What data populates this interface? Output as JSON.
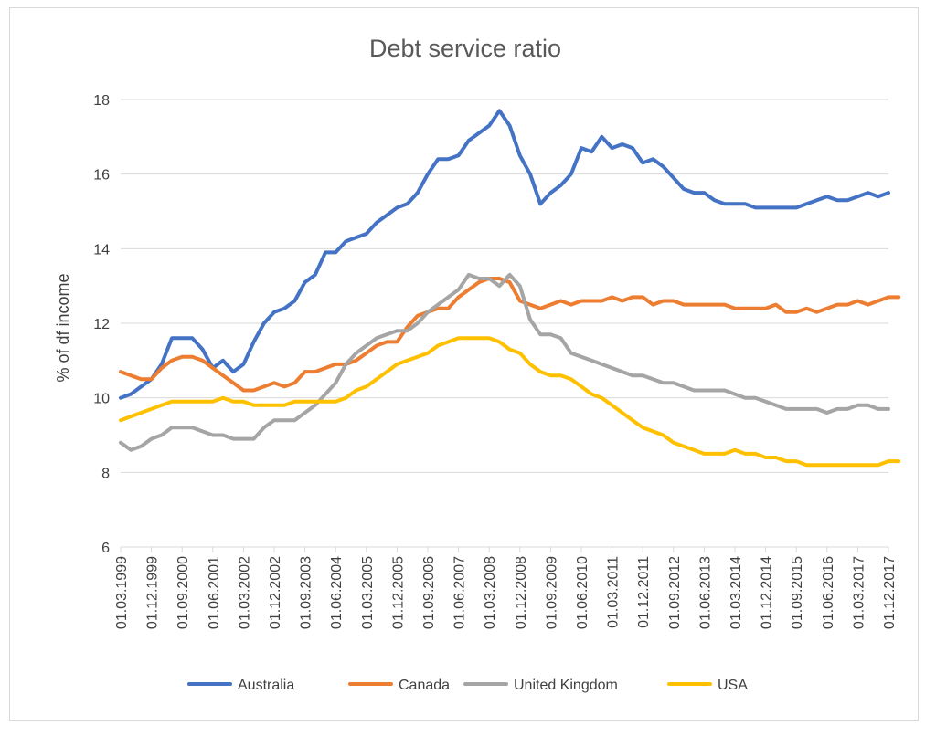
{
  "chart_data": {
    "type": "line",
    "title": "Debt service ratio",
    "ylabel": "% of df income",
    "xlabel": "",
    "ylim": [
      6,
      18
    ],
    "yticks": [
      "18",
      "16",
      "14",
      "12",
      "10",
      "8",
      "6"
    ],
    "x_tick_labels": [
      "01.03.1999",
      "01.12.1999",
      "01.09.2000",
      "01.06.2001",
      "01.03.2002",
      "01.12.2002",
      "01.09.2003",
      "01.06.2004",
      "01.03.2005",
      "01.12.2005",
      "01.09.2006",
      "01.06.2007",
      "01.03.2008",
      "01.12.2008",
      "01.09.2009",
      "01.06.2010",
      "01.03.2011",
      "01.12.2011",
      "01.09.2012",
      "01.06.2013",
      "01.03.2014",
      "01.12.2014",
      "01.09.2015",
      "01.06.2016",
      "01.03.2017",
      "01.12.2017"
    ],
    "grid": "horizontal",
    "legend_position": "bottom",
    "series": [
      {
        "name": "Australia",
        "color": "#4472c4",
        "values": [
          10.0,
          10.1,
          10.3,
          10.5,
          10.9,
          11.6,
          11.6,
          11.6,
          11.3,
          10.8,
          11.0,
          10.7,
          10.9,
          11.5,
          12.0,
          12.3,
          12.4,
          12.6,
          13.1,
          13.3,
          13.9,
          13.9,
          14.2,
          14.3,
          14.4,
          14.7,
          14.9,
          15.1,
          15.2,
          15.5,
          16.0,
          16.4,
          16.4,
          16.5,
          16.9,
          17.1,
          17.3,
          17.7,
          17.3,
          16.5,
          16.0,
          15.2,
          15.5,
          15.7,
          16.0,
          16.7,
          16.6,
          17.0,
          16.7,
          16.8,
          16.7,
          16.3,
          16.4,
          16.2,
          15.9,
          15.6,
          15.5,
          15.5,
          15.3,
          15.2,
          15.2,
          15.2,
          15.1,
          15.1,
          15.1,
          15.1,
          15.1,
          15.2,
          15.3,
          15.4,
          15.3,
          15.3,
          15.4,
          15.5,
          15.4,
          15.5
        ]
      },
      {
        "name": "Canada",
        "color": "#ed7d31",
        "values": [
          10.7,
          10.6,
          10.5,
          10.5,
          10.8,
          11.0,
          11.1,
          11.1,
          11.0,
          10.8,
          10.6,
          10.4,
          10.2,
          10.2,
          10.3,
          10.4,
          10.3,
          10.4,
          10.7,
          10.7,
          10.8,
          10.9,
          10.9,
          11.0,
          11.2,
          11.4,
          11.5,
          11.5,
          11.9,
          12.2,
          12.3,
          12.4,
          12.4,
          12.7,
          12.9,
          13.1,
          13.2,
          13.2,
          13.1,
          12.6,
          12.5,
          12.4,
          12.5,
          12.6,
          12.5,
          12.6,
          12.6,
          12.6,
          12.7,
          12.6,
          12.7,
          12.7,
          12.5,
          12.6,
          12.6,
          12.5,
          12.5,
          12.5,
          12.5,
          12.5,
          12.4,
          12.4,
          12.4,
          12.4,
          12.5,
          12.3,
          12.3,
          12.4,
          12.3,
          12.4,
          12.5,
          12.5,
          12.6,
          12.5,
          12.6,
          12.7,
          12.7
        ]
      },
      {
        "name": "United Kingdom",
        "color": "#a5a5a5",
        "values": [
          8.8,
          8.6,
          8.7,
          8.9,
          9.0,
          9.2,
          9.2,
          9.2,
          9.1,
          9.0,
          9.0,
          8.9,
          8.9,
          8.9,
          9.2,
          9.4,
          9.4,
          9.4,
          9.6,
          9.8,
          10.1,
          10.4,
          10.9,
          11.2,
          11.4,
          11.6,
          11.7,
          11.8,
          11.8,
          12.0,
          12.3,
          12.5,
          12.7,
          12.9,
          13.3,
          13.2,
          13.2,
          13.0,
          13.3,
          13.0,
          12.1,
          11.7,
          11.7,
          11.6,
          11.2,
          11.1,
          11.0,
          10.9,
          10.8,
          10.7,
          10.6,
          10.6,
          10.5,
          10.4,
          10.4,
          10.3,
          10.2,
          10.2,
          10.2,
          10.2,
          10.1,
          10.0,
          10.0,
          9.9,
          9.8,
          9.7,
          9.7,
          9.7,
          9.7,
          9.6,
          9.7,
          9.7,
          9.8,
          9.8,
          9.7,
          9.7
        ]
      },
      {
        "name": "USA",
        "color": "#ffc000",
        "values": [
          9.4,
          9.5,
          9.6,
          9.7,
          9.8,
          9.9,
          9.9,
          9.9,
          9.9,
          9.9,
          10.0,
          9.9,
          9.9,
          9.8,
          9.8,
          9.8,
          9.8,
          9.9,
          9.9,
          9.9,
          9.9,
          9.9,
          10.0,
          10.2,
          10.3,
          10.5,
          10.7,
          10.9,
          11.0,
          11.1,
          11.2,
          11.4,
          11.5,
          11.6,
          11.6,
          11.6,
          11.6,
          11.5,
          11.3,
          11.2,
          10.9,
          10.7,
          10.6,
          10.6,
          10.5,
          10.3,
          10.1,
          10.0,
          9.8,
          9.6,
          9.4,
          9.2,
          9.1,
          9.0,
          8.8,
          8.7,
          8.6,
          8.5,
          8.5,
          8.5,
          8.6,
          8.5,
          8.5,
          8.4,
          8.4,
          8.3,
          8.3,
          8.2,
          8.2,
          8.2,
          8.2,
          8.2,
          8.2,
          8.2,
          8.2,
          8.3,
          8.3
        ]
      }
    ]
  }
}
